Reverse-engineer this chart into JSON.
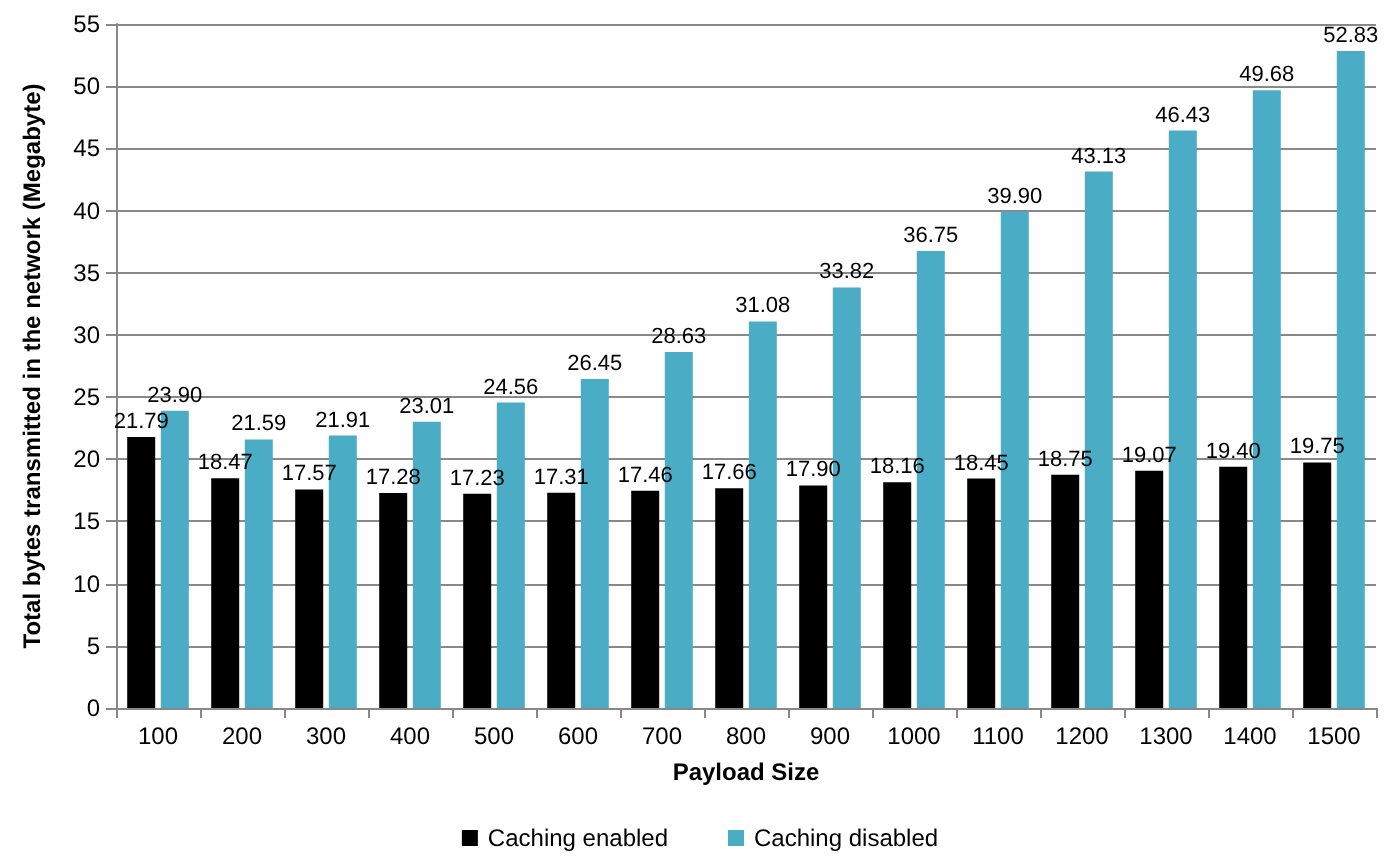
{
  "chart_data": {
    "type": "bar",
    "xlabel": "Payload Size",
    "ylabel": "Total bytes transmitted in the network (Megabyte)",
    "categories": [
      "100",
      "200",
      "300",
      "400",
      "500",
      "600",
      "700",
      "800",
      "900",
      "1000",
      "1100",
      "1200",
      "1300",
      "1400",
      "1500"
    ],
    "series": [
      {
        "name": "Caching enabled",
        "color": "#000000",
        "values": [
          21.79,
          18.47,
          17.57,
          17.28,
          17.23,
          17.31,
          17.46,
          17.66,
          17.9,
          18.16,
          18.45,
          18.75,
          19.07,
          19.4,
          19.75
        ],
        "value_labels": [
          "21.79",
          "18.47",
          "17.57",
          "17.28",
          "17.23",
          "17.31",
          "17.46",
          "17.66",
          "17.90",
          "18.16",
          "18.45",
          "18.75",
          "19.07",
          "19.40",
          "19.75"
        ]
      },
      {
        "name": "Caching disabled",
        "color": "#4bacc6",
        "values": [
          23.9,
          21.59,
          21.91,
          23.01,
          24.56,
          26.45,
          28.63,
          31.08,
          33.82,
          36.75,
          39.9,
          43.13,
          46.43,
          49.68,
          52.83
        ],
        "value_labels": [
          "23.90",
          "21.59",
          "21.91",
          "23.01",
          "24.56",
          "26.45",
          "28.63",
          "31.08",
          "33.82",
          "36.75",
          "39.90",
          "43.13",
          "46.43",
          "49.68",
          "52.83"
        ]
      }
    ],
    "ylim": [
      0,
      55
    ],
    "yticks": [
      0,
      5,
      10,
      15,
      20,
      25,
      30,
      35,
      40,
      45,
      50,
      55
    ],
    "grid": "y",
    "legend": "bottom"
  }
}
